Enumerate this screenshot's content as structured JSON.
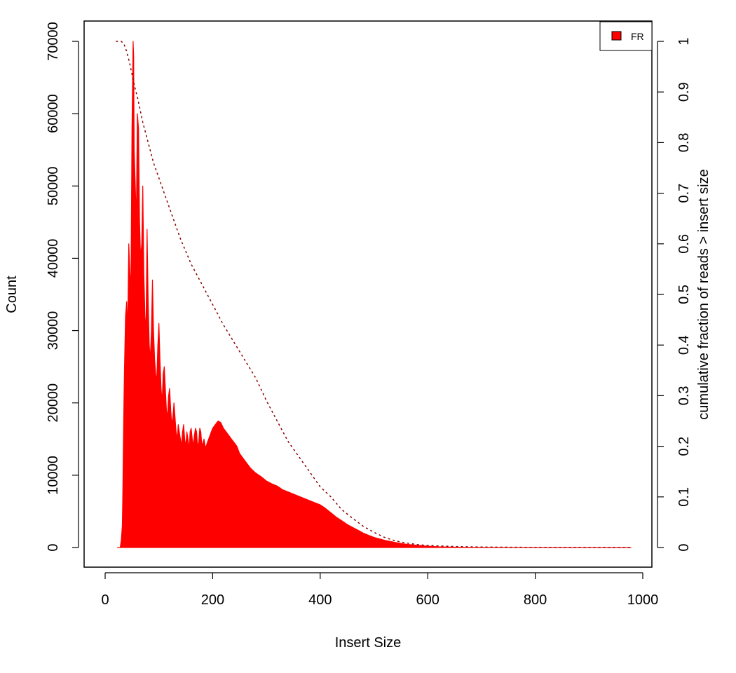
{
  "chart_data": {
    "type": "area",
    "xlabel": "Insert Size",
    "ylabel_left": "Count",
    "ylabel_right": "cumulative fraction of reads > insert size",
    "xlim": [
      0,
      1000
    ],
    "ylim_left": [
      0,
      70000
    ],
    "ylim_right": [
      0,
      1
    ],
    "x_ticks": [
      0,
      200,
      400,
      600,
      800,
      1000
    ],
    "y_left_ticks": [
      0,
      10000,
      20000,
      30000,
      40000,
      50000,
      60000,
      70000
    ],
    "y_right_ticks": [
      0,
      0.1,
      0.2,
      0.3,
      0.4,
      0.5,
      0.6,
      0.7,
      0.8,
      0.9,
      1
    ],
    "y_right_tick_labels": [
      "0",
      "0.1",
      "0.2",
      "0.3",
      "0.4",
      "0.5",
      "0.6",
      "0.7",
      "0.8",
      "0.9",
      "1"
    ],
    "legend": {
      "position": "top-right",
      "entries": [
        {
          "label": "FR",
          "color": "#ff0000"
        }
      ]
    },
    "series": [
      {
        "name": "FR",
        "kind": "histogram",
        "color": "#ff0000",
        "x": [
          23,
          28,
          30,
          32,
          33,
          34,
          35,
          36,
          38,
          40,
          42,
          44,
          46,
          48,
          50,
          52,
          53,
          54,
          56,
          58,
          60,
          62,
          64,
          66,
          68,
          70,
          72,
          74,
          76,
          78,
          80,
          82,
          84,
          86,
          88,
          90,
          92,
          94,
          96,
          98,
          100,
          102,
          104,
          106,
          108,
          110,
          112,
          114,
          116,
          118,
          120,
          122,
          124,
          126,
          128,
          130,
          132,
          134,
          136,
          138,
          140,
          142,
          144,
          146,
          148,
          150,
          152,
          154,
          156,
          158,
          160,
          162,
          164,
          166,
          168,
          170,
          172,
          174,
          176,
          178,
          180,
          182,
          184,
          186,
          188,
          190,
          195,
          200,
          205,
          210,
          215,
          220,
          225,
          230,
          235,
          240,
          245,
          250,
          260,
          270,
          280,
          290,
          300,
          310,
          320,
          330,
          340,
          350,
          360,
          370,
          380,
          390,
          400,
          410,
          420,
          430,
          440,
          450,
          460,
          470,
          480,
          490,
          500,
          520,
          540,
          560,
          580,
          600,
          620,
          640,
          660,
          680,
          700,
          750,
          800,
          850,
          900,
          950,
          978
        ],
        "y": [
          0,
          0,
          1000,
          3000,
          8000,
          15000,
          20000,
          25000,
          32000,
          34000,
          30000,
          42000,
          38000,
          36000,
          58000,
          70000,
          68000,
          55000,
          50000,
          45000,
          60000,
          58000,
          45000,
          40000,
          42000,
          50000,
          38000,
          32000,
          30000,
          44000,
          34000,
          28000,
          26000,
          30000,
          37000,
          30000,
          26000,
          24000,
          23000,
          28000,
          31000,
          26000,
          22000,
          20000,
          24000,
          25000,
          22000,
          19000,
          18000,
          21000,
          22000,
          19000,
          17000,
          18000,
          20000,
          18000,
          16000,
          15000,
          17000,
          16000,
          15000,
          14000,
          16000,
          17000,
          15000,
          14000,
          16000,
          15000,
          13500,
          16000,
          16500,
          15000,
          14000,
          15500,
          16500,
          16000,
          14000,
          14500,
          16500,
          16000,
          14000,
          14500,
          15000,
          14000,
          14000,
          14500,
          15500,
          16500,
          17000,
          17500,
          17300,
          16500,
          16000,
          15500,
          15000,
          14500,
          14000,
          13000,
          12000,
          11000,
          10300,
          9800,
          9200,
          8800,
          8500,
          8000,
          7700,
          7400,
          7100,
          6800,
          6500,
          6200,
          5900,
          5400,
          4800,
          4200,
          3700,
          3200,
          2800,
          2400,
          2000,
          1700,
          1400,
          1000,
          700,
          450,
          300,
          180,
          100,
          60,
          30,
          15,
          8,
          3,
          1,
          0,
          0,
          0,
          0
        ]
      },
      {
        "name": "cumulative fraction of reads > insert size",
        "kind": "line",
        "style": "dashed",
        "color": "#8b0000",
        "axis": "right",
        "x": [
          20,
          30,
          35,
          40,
          45,
          50,
          55,
          60,
          70,
          80,
          90,
          100,
          120,
          140,
          160,
          180,
          200,
          220,
          240,
          260,
          280,
          300,
          320,
          340,
          360,
          380,
          400,
          420,
          440,
          460,
          480,
          500,
          520,
          540,
          560,
          580,
          600,
          650,
          700,
          800,
          900,
          978
        ],
        "y": [
          1.0,
          1.0,
          0.995,
          0.98,
          0.96,
          0.935,
          0.91,
          0.89,
          0.84,
          0.8,
          0.76,
          0.73,
          0.67,
          0.61,
          0.56,
          0.52,
          0.48,
          0.44,
          0.405,
          0.37,
          0.335,
          0.29,
          0.25,
          0.21,
          0.18,
          0.15,
          0.12,
          0.1,
          0.075,
          0.058,
          0.042,
          0.03,
          0.02,
          0.013,
          0.009,
          0.006,
          0.004,
          0.002,
          0.001,
          0.0003,
          0.0001,
          0
        ]
      }
    ]
  }
}
